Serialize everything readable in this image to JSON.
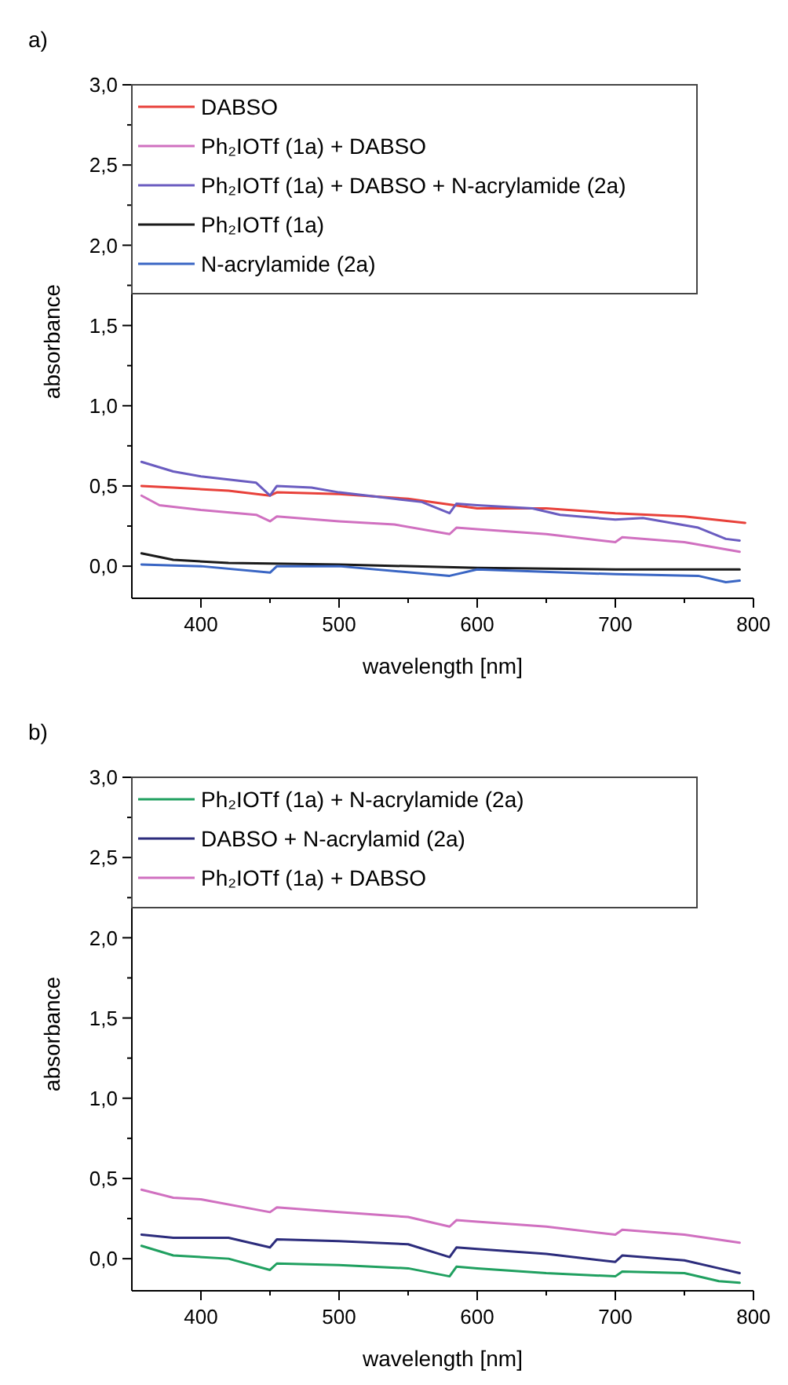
{
  "chart_data": [
    {
      "type": "line",
      "title": "a)",
      "xlabel": "wavelength [nm]",
      "ylabel": "absorbance",
      "xlim": [
        350,
        800
      ],
      "ylim": [
        -0.2,
        3.0
      ],
      "xticks": [
        400,
        {
          "value": 450,
          "label": null
        },
        500,
        {
          "value": 550,
          "label": null
        },
        600,
        {
          "value": 650,
          "label": null
        },
        700,
        {
          "value": 750,
          "label": null
        },
        800
      ],
      "yticks": [
        {
          "value": 0,
          "label": "0,0"
        },
        {
          "value": 0.25,
          "label": null
        },
        {
          "value": 0.5,
          "label": "0,5"
        },
        {
          "value": 0.75,
          "label": null
        },
        {
          "value": 1.0,
          "label": "1,0"
        },
        {
          "value": 1.25,
          "label": null
        },
        {
          "value": 1.5,
          "label": "1,5"
        },
        {
          "value": 1.75,
          "label": null
        },
        {
          "value": 2.0,
          "label": "2,0"
        },
        {
          "value": 2.25,
          "label": null
        },
        {
          "value": 2.5,
          "label": "2,5"
        },
        {
          "value": 2.75,
          "label": null
        },
        {
          "value": 3.0,
          "label": "3,0"
        }
      ],
      "legend": "top left",
      "series": [
        {
          "name": "DABSO",
          "color": "#e8413a",
          "x": [
            357,
            380,
            420,
            450,
            455,
            500,
            550,
            600,
            650,
            700,
            750,
            794
          ],
          "values": [
            0.5,
            0.49,
            0.47,
            0.44,
            0.46,
            0.45,
            0.42,
            0.36,
            0.36,
            0.33,
            0.31,
            0.27
          ]
        },
        {
          "name": "Ph₂IOTf (1a) + DABSO",
          "color": "#d070c0",
          "x": [
            357,
            370,
            400,
            440,
            450,
            455,
            500,
            540,
            580,
            585,
            600,
            650,
            700,
            705,
            750,
            790
          ],
          "values": [
            0.44,
            0.38,
            0.35,
            0.32,
            0.28,
            0.31,
            0.28,
            0.26,
            0.2,
            0.24,
            0.23,
            0.2,
            0.15,
            0.18,
            0.15,
            0.09
          ]
        },
        {
          "name": "Ph₂IOTf (1a) + DABSO + N-acrylamide (2a)",
          "color": "#6a5cc0",
          "x": [
            357,
            380,
            400,
            440,
            450,
            455,
            480,
            500,
            540,
            560,
            580,
            585,
            600,
            640,
            660,
            700,
            720,
            760,
            780,
            790
          ],
          "values": [
            0.65,
            0.59,
            0.56,
            0.52,
            0.44,
            0.5,
            0.49,
            0.46,
            0.42,
            0.4,
            0.33,
            0.39,
            0.38,
            0.36,
            0.32,
            0.29,
            0.3,
            0.24,
            0.17,
            0.16
          ]
        },
        {
          "name": "Ph₂IOTf (1a)",
          "color": "#1a1a1a",
          "x": [
            357,
            380,
            420,
            500,
            600,
            700,
            790
          ],
          "values": [
            0.08,
            0.04,
            0.02,
            0.01,
            -0.01,
            -0.02,
            -0.02
          ]
        },
        {
          "name": "N-acrylamide (2a)",
          "color": "#3a66c4",
          "x": [
            357,
            400,
            450,
            455,
            500,
            580,
            600,
            700,
            760,
            780,
            790
          ],
          "values": [
            0.01,
            0.0,
            -0.04,
            0.0,
            0.0,
            -0.06,
            -0.02,
            -0.05,
            -0.06,
            -0.1,
            -0.09
          ]
        }
      ]
    },
    {
      "type": "line",
      "title": "b)",
      "xlabel": "wavelength [nm]",
      "ylabel": "absorbance",
      "xlim": [
        350,
        800
      ],
      "ylim": [
        -0.2,
        3.0
      ],
      "xticks": [
        400,
        {
          "value": 450,
          "label": null
        },
        500,
        {
          "value": 550,
          "label": null
        },
        600,
        {
          "value": 650,
          "label": null
        },
        700,
        {
          "value": 750,
          "label": null
        },
        800
      ],
      "yticks": [
        {
          "value": 0,
          "label": "0,0"
        },
        {
          "value": 0.25,
          "label": null
        },
        {
          "value": 0.5,
          "label": "0,5"
        },
        {
          "value": 0.75,
          "label": null
        },
        {
          "value": 1.0,
          "label": "1,0"
        },
        {
          "value": 1.25,
          "label": null
        },
        {
          "value": 1.5,
          "label": "1,5"
        },
        {
          "value": 1.75,
          "label": null
        },
        {
          "value": 2.0,
          "label": "2,0"
        },
        {
          "value": 2.25,
          "label": null
        },
        {
          "value": 2.5,
          "label": "2,5"
        },
        {
          "value": 2.75,
          "label": null
        },
        {
          "value": 3.0,
          "label": "3,0"
        }
      ],
      "legend": "top left",
      "series": [
        {
          "name": "Ph₂IOTf (1a) + N-acrylamide (2a)",
          "color": "#20a060",
          "x": [
            357,
            380,
            420,
            450,
            455,
            500,
            550,
            580,
            585,
            600,
            650,
            700,
            705,
            750,
            775,
            790
          ],
          "values": [
            0.08,
            0.02,
            0.0,
            -0.07,
            -0.03,
            -0.04,
            -0.06,
            -0.11,
            -0.05,
            -0.06,
            -0.09,
            -0.11,
            -0.08,
            -0.09,
            -0.14,
            -0.15
          ]
        },
        {
          "name": "DABSO + N-acrylamid (2a)",
          "color": "#2c2c7c",
          "x": [
            357,
            380,
            420,
            450,
            455,
            500,
            550,
            580,
            585,
            600,
            650,
            700,
            705,
            750,
            775,
            790
          ],
          "values": [
            0.15,
            0.13,
            0.13,
            0.07,
            0.12,
            0.11,
            0.09,
            0.01,
            0.07,
            0.06,
            0.03,
            -0.02,
            0.02,
            -0.01,
            -0.06,
            -0.09
          ]
        },
        {
          "name": "Ph₂IOTf (1a) + DABSO",
          "color": "#d070c0",
          "x": [
            357,
            380,
            400,
            450,
            455,
            500,
            550,
            580,
            585,
            600,
            650,
            700,
            705,
            750,
            790
          ],
          "values": [
            0.43,
            0.38,
            0.37,
            0.29,
            0.32,
            0.29,
            0.26,
            0.2,
            0.24,
            0.23,
            0.2,
            0.15,
            0.18,
            0.15,
            0.1
          ]
        }
      ]
    }
  ]
}
